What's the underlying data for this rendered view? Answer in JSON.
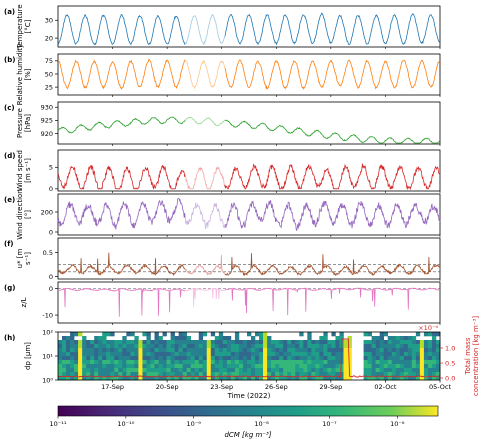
{
  "chart_data": [
    {
      "panel": "(a)",
      "type": "line",
      "ylabel": "Temperature [°C]",
      "yticks": [
        20,
        30
      ],
      "ylim": [
        15,
        38
      ],
      "color": "#1f77b4",
      "light_color": "#9ecae1",
      "model": {
        "base": 25,
        "amp": 8,
        "phase": 0.25,
        "noise": 1.0,
        "trend": 0
      }
    },
    {
      "panel": "(b)",
      "type": "line",
      "ylabel": "Relative humidity [%]",
      "yticks": [
        25,
        50,
        75
      ],
      "ylim": [
        10,
        88
      ],
      "color": "#ff7f0e",
      "light_color": "#fdc68b",
      "model": {
        "base": 50,
        "amp": -25,
        "phase": 0.25,
        "noise": 4,
        "trend": 0
      }
    },
    {
      "panel": "(c)",
      "type": "line",
      "ylabel": "Pressure [hPa]",
      "yticks": [
        920,
        925,
        930
      ],
      "ylim": [
        916,
        932
      ],
      "color": "#2ca02c",
      "light_color": "#a1d99b",
      "model": {
        "base": 921,
        "amp": 1.2,
        "phase": 0.0,
        "noise": 0.4,
        "trend": 4
      }
    },
    {
      "panel": "(d)",
      "type": "line",
      "ylabel": "Wind speed [m s⁻¹]",
      "yticks": [
        0,
        5
      ],
      "ylim": [
        -0.5,
        9
      ],
      "color": "#d62728",
      "light_color": "#f1a9a9",
      "model": {
        "base": 2.5,
        "amp": 2.5,
        "phase": 0.55,
        "noise": 1.2,
        "trend": 0
      }
    },
    {
      "panel": "(e)",
      "type": "line",
      "ylabel": "Wind direction [°]",
      "yticks": [
        0,
        200
      ],
      "ylim": [
        -30,
        380
      ],
      "color": "#9467bd",
      "light_color": "#cbb5e0",
      "model": {
        "base": 180,
        "amp": 100,
        "phase": 0.4,
        "noise": 70,
        "trend": 0
      }
    },
    {
      "panel": "(f)",
      "type": "line",
      "ylabel": "u* [m s⁻¹]",
      "yticks": [
        0.0,
        0.5
      ],
      "ylim": [
        -0.05,
        0.8
      ],
      "reference_lines": [
        0.1,
        0.25
      ],
      "color": "#a0522d",
      "light_color": "#e8a0a0",
      "model": {
        "base": 0.14,
        "amp": 0.08,
        "phase": 0.55,
        "noise": 0.05,
        "trend": 0
      }
    },
    {
      "panel": "(g)",
      "type": "line",
      "ylabel": "z/L",
      "yticks": [
        -10,
        0
      ],
      "ylim": [
        -13,
        2.5
      ],
      "reference_lines": [
        0
      ],
      "color": "#e377c2",
      "light_color": "#f7c0e4",
      "model": {
        "base": -0.3,
        "amp": 0.3,
        "phase": 0.3,
        "noise": 0.3,
        "trend": 0
      }
    },
    {
      "panel": "(h)",
      "type": "heatmap",
      "ylabel": "dp [µm]",
      "yscale": "log",
      "ylim": [
        1,
        100
      ],
      "yticks": [
        "10⁰",
        "10¹",
        "10²"
      ],
      "xlabel": "Time (2022)",
      "xticks": [
        "17-Sep",
        "20-Sep",
        "23-Sep",
        "26-Sep",
        "29-Sep",
        "02-Oct",
        "05-Oct"
      ],
      "right_ylabel": "Total mass concentration [kg m⁻³]",
      "right_yticks": [
        "0.0",
        "0.5",
        "1.0"
      ],
      "right_scale_label": "×10⁻⁴",
      "colorbar": {
        "label": "dCM [kg m⁻³]",
        "ticks": [
          "10⁻¹¹",
          "10⁻¹⁰",
          "10⁻⁹",
          "10⁻⁸",
          "10⁻⁷",
          "10⁻⁶"
        ],
        "colormap": "viridis"
      }
    }
  ],
  "x_axis": {
    "start": "2022-09-14",
    "end": "2022-10-05",
    "light_segment": [
      "2022-09-21",
      "2022-09-23"
    ]
  }
}
